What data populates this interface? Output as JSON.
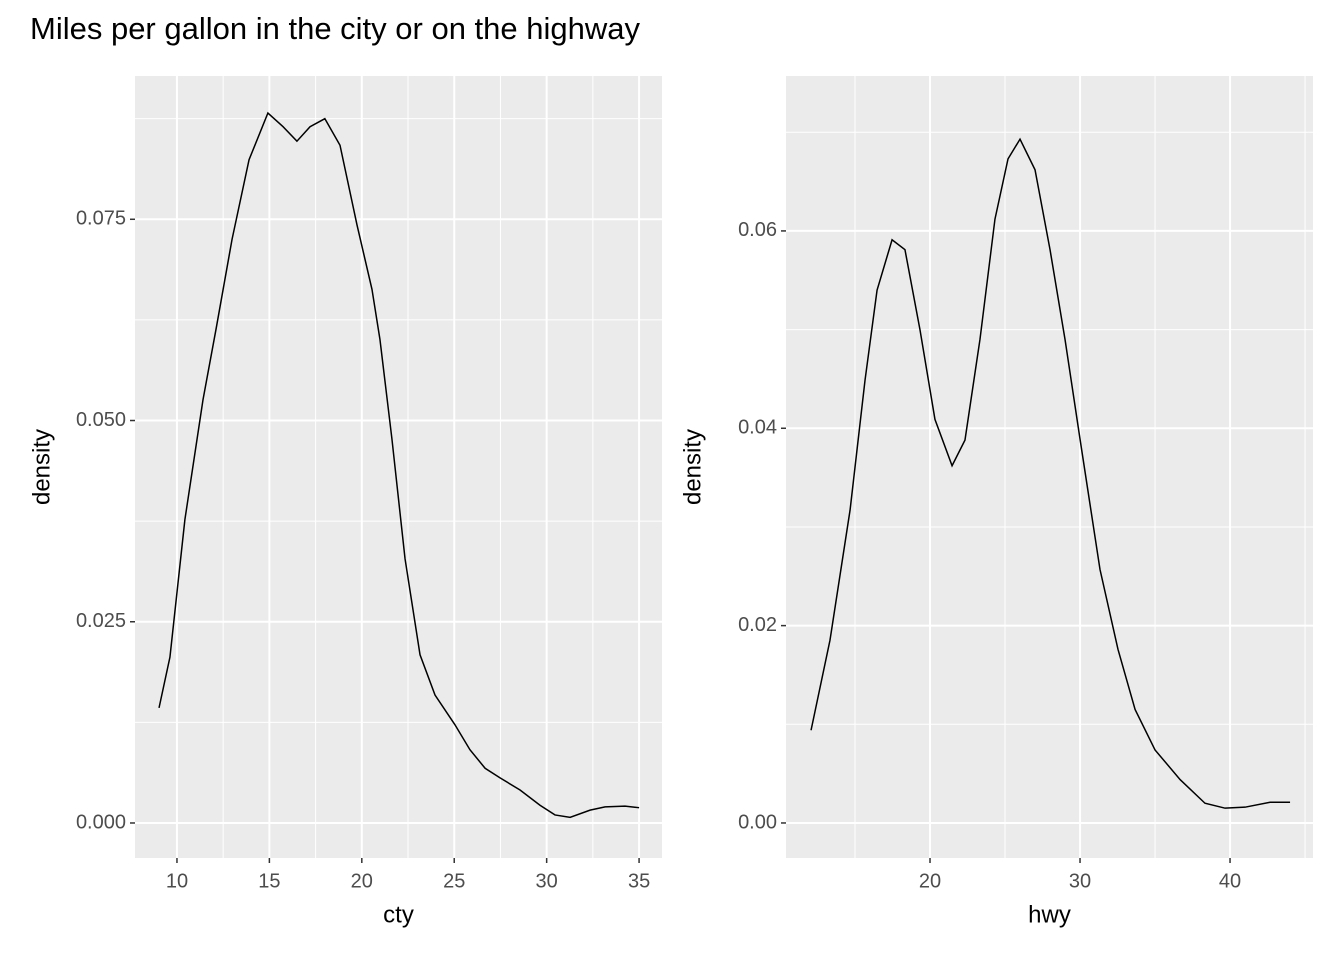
{
  "title": "Miles per gallon in the city or on the highway",
  "chart_data": [
    {
      "type": "line",
      "x_label": "cty",
      "y_label": "density",
      "color": "#000000",
      "grid": true,
      "x": [
        9.03,
        9.62,
        10.43,
        11.41,
        12.11,
        12.98,
        13.9,
        14.92,
        15.74,
        16.49,
        17.2,
        18.0,
        18.82,
        19.74,
        20.55,
        20.98,
        21.63,
        22.34,
        23.15,
        23.96,
        25.04,
        25.85,
        26.67,
        27.48,
        28.56,
        29.64,
        30.45,
        31.27,
        32.35,
        33.16,
        34.24,
        35.0
      ],
      "values": [
        0.0143,
        0.0206,
        0.0377,
        0.0526,
        0.0613,
        0.0725,
        0.0824,
        0.0882,
        0.0865,
        0.0847,
        0.0865,
        0.0875,
        0.0842,
        0.0743,
        0.0663,
        0.0601,
        0.0477,
        0.0328,
        0.0209,
        0.0159,
        0.0122,
        0.0091,
        0.0068,
        0.0056,
        0.0041,
        0.0022,
        0.001,
        0.0007,
        0.0016,
        0.002,
        0.0021,
        0.0019
      ],
      "xlim": [
        7.73,
        36.24
      ],
      "ylim": [
        -0.00435,
        0.0928
      ],
      "xticks": [
        10,
        15,
        20,
        25,
        30,
        35
      ],
      "yticks": [
        {
          "value": 0,
          "label": "0.000"
        },
        {
          "value": 0.025,
          "label": "0.025"
        },
        {
          "value": 0.05,
          "label": "0.050"
        },
        {
          "value": 0.075,
          "label": "0.075"
        }
      ]
    },
    {
      "type": "line",
      "x_label": "hwy",
      "y_label": "density",
      "color": "#000000",
      "grid": true,
      "x": [
        12.07,
        13.33,
        14.67,
        15.67,
        16.47,
        17.47,
        18.33,
        19.33,
        20.33,
        21.47,
        22.33,
        23.33,
        24.33,
        25.2,
        26.0,
        27.0,
        28.0,
        29.0,
        30.0,
        31.33,
        32.53,
        33.67,
        35.0,
        36.67,
        38.33,
        39.67,
        41.0,
        42.67,
        44.0
      ],
      "values": [
        0.0094,
        0.0185,
        0.0317,
        0.0449,
        0.054,
        0.0591,
        0.0581,
        0.05,
        0.0409,
        0.0362,
        0.0388,
        0.049,
        0.0612,
        0.0673,
        0.0693,
        0.0662,
        0.0581,
        0.049,
        0.0389,
        0.0257,
        0.0176,
        0.0115,
        0.0074,
        0.0044,
        0.002,
        0.0015,
        0.0016,
        0.0021,
        0.0021
      ],
      "xlim": [
        10.4,
        45.53
      ],
      "ylim": [
        -0.00355,
        0.0757
      ],
      "xticks": [
        20,
        30,
        40
      ],
      "yticks": [
        {
          "value": 0,
          "label": "0.00"
        },
        {
          "value": 0.02,
          "label": "0.02"
        },
        {
          "value": 0.04,
          "label": "0.04"
        },
        {
          "value": 0.06,
          "label": "0.06"
        }
      ]
    }
  ]
}
